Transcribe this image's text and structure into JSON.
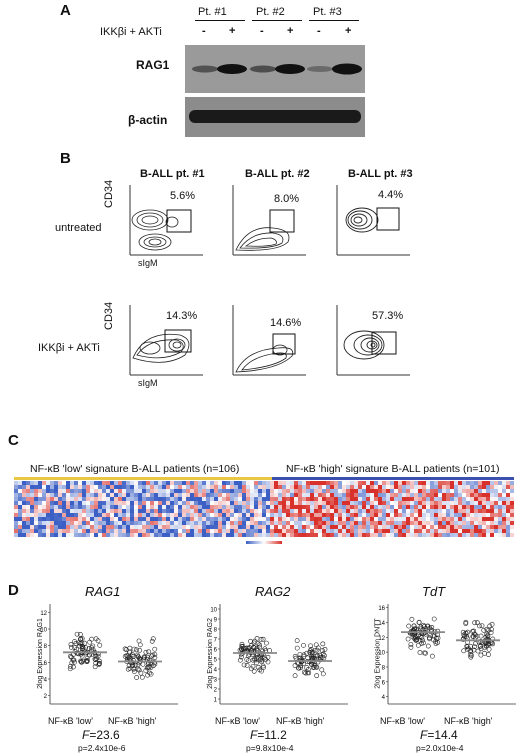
{
  "panelA": {
    "letter": "A",
    "patients": [
      "Pt. #1",
      "Pt. #2",
      "Pt. #3"
    ],
    "treatment_label": "IKKβi + AKTi",
    "treatment_signs": [
      "-",
      "+",
      "-",
      "+",
      "-",
      "+"
    ],
    "blots": [
      "RAG1",
      "β-actin"
    ]
  },
  "panelB": {
    "letter": "B",
    "columns": [
      "B-ALL pt. #1",
      "B-ALL pt. #2",
      "B-ALL pt. #3"
    ],
    "rows": [
      "untreated",
      "IKKβi + AKTi"
    ],
    "yaxis": "CD34",
    "xaxis": "sIgM",
    "untreated_pct": [
      "5.6%",
      "8.0%",
      "4.4%"
    ],
    "treated_pct": [
      "14.3%",
      "14.6%",
      "57.3%"
    ],
    "tick": "10"
  },
  "panelC": {
    "letter": "C",
    "low_label": "NF-κB 'low' signature B-ALL patients (n=106)",
    "high_label": "NF-κB 'high' signature B-ALL patients (n=101)",
    "colors": {
      "low": "#3b5fc4",
      "high": "#d8302a",
      "mid": "#ffffff",
      "low_bar": "#e8c843",
      "high_bar": "#3b4fb0"
    }
  },
  "panelD": {
    "letter": "D",
    "plots": [
      {
        "gene": "RAG1",
        "ylabel": "2log Expression RAG1",
        "yticks": [
          "12",
          "10",
          "8",
          "6",
          "4",
          "2"
        ],
        "xcats": [
          "NF-κB 'low'",
          "NF-κB 'high'"
        ],
        "F": "=23.6",
        "p": "p=2.4x10e-6",
        "median_low": 7.2,
        "median_high": 6.1,
        "ymin": 1,
        "ymax": 13
      },
      {
        "gene": "RAG2",
        "ylabel": "2log Expression RAG2",
        "yticks": [
          "10",
          "9",
          "8",
          "7",
          "6",
          "5",
          "4",
          "3",
          "2",
          "1"
        ],
        "xcats": [
          "NF-κB 'low'",
          "NF-κB 'high'"
        ],
        "F": "=11.2",
        "p": "p=9.8x10e-4",
        "median_low": 5.6,
        "median_high": 4.8,
        "ymin": 0.5,
        "ymax": 10.5
      },
      {
        "gene": "TdT",
        "ylabel": "2log Expression DNTT",
        "yticks": [
          "16",
          "14",
          "12",
          "10",
          "8",
          "6",
          "4"
        ],
        "xcats": [
          "NF-κB 'low'",
          "NF-κB 'high'"
        ],
        "F": "=14.4",
        "p": "p=2.0x10e-4",
        "median_low": 12.7,
        "median_high": 11.6,
        "ymin": 3,
        "ymax": 16.5
      }
    ],
    "F_letter": "F"
  }
}
